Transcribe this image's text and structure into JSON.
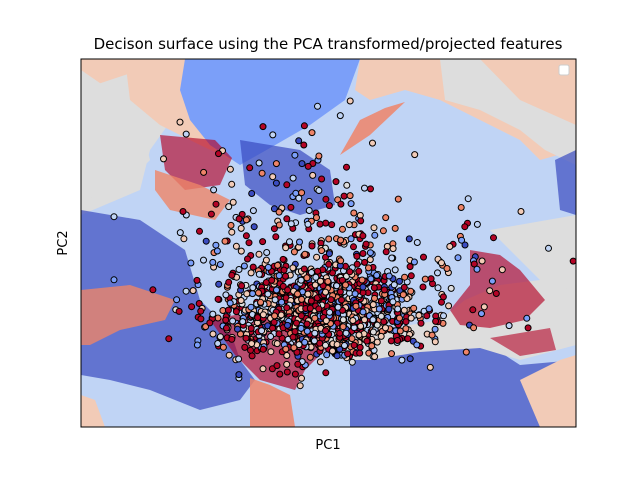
{
  "chart_data": {
    "type": "scatter",
    "title": "Decison surface using the PCA transformed/projected features",
    "xlabel": "PC1",
    "ylabel": "PC2",
    "xticks": [],
    "yticks": [],
    "legend": {
      "placement": "top-right",
      "entries": []
    },
    "grid": false,
    "xlim": [
      -4,
      5
    ],
    "ylim": [
      -3,
      4
    ],
    "colormap": "coolwarm",
    "class_colors": [
      "#3b4cc0",
      "#7b9ff9",
      "#c0d4f5",
      "#dddddd",
      "#f2cbb7",
      "#ee8468",
      "#b40426"
    ],
    "background": "decision surface of a classifier over PC1/PC2, 7 classes (coolwarm)",
    "series": [
      {
        "points_summary": "approx. 1,500 points; dense cluster centred near PC1≈0.3, PC2≈-0.8; most points in the warm classes, sparse outliers spreading toward the top and the right"
      }
    ]
  }
}
